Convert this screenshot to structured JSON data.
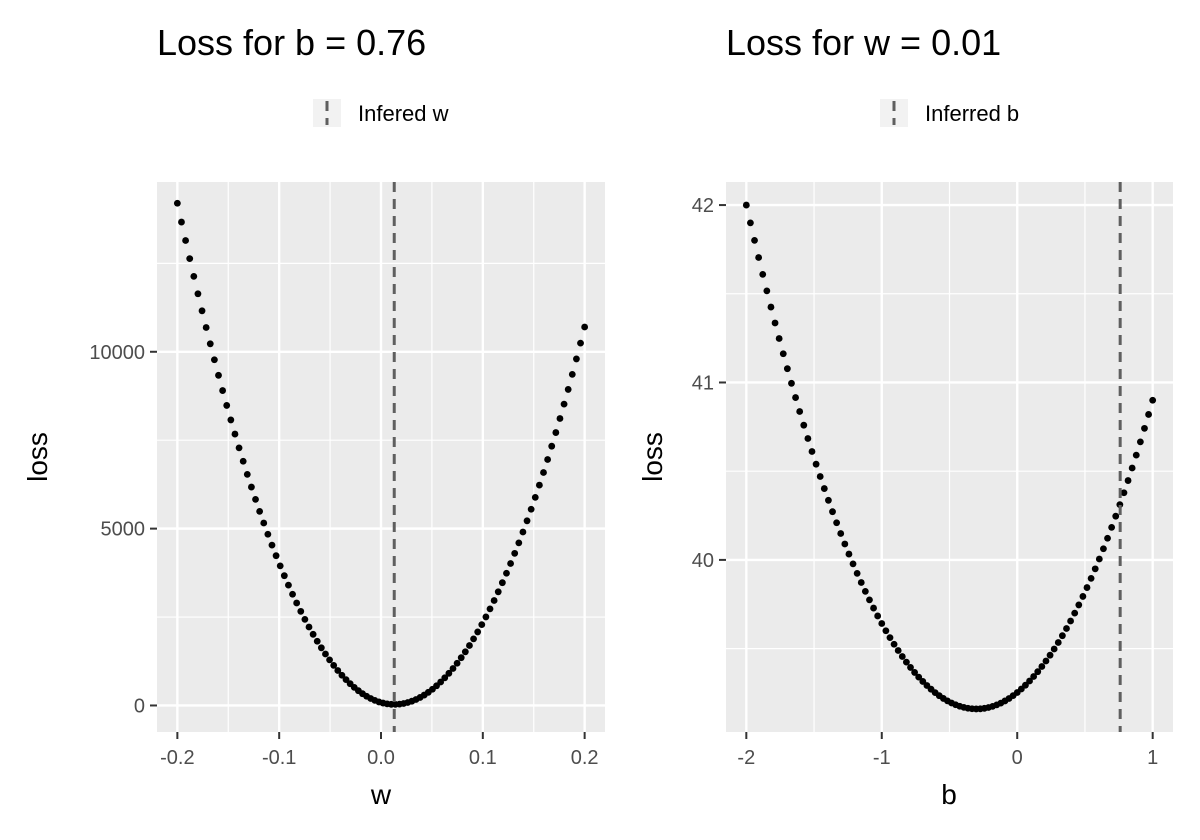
{
  "chart_data": [
    {
      "type": "scatter",
      "title": "Loss for b =  0.76",
      "legend": {
        "label": "Infered w",
        "position": "top"
      },
      "xlabel": "w",
      "ylabel": "loss",
      "xlim": [
        -0.22,
        0.22
      ],
      "ylim": [
        -750,
        14800
      ],
      "x_ticks": [
        -0.2,
        -0.1,
        0.0,
        0.1,
        0.2
      ],
      "x_tick_labels": [
        "-0.2",
        "-0.1",
        "0.0",
        "0.1",
        "0.2"
      ],
      "y_ticks": [
        0,
        5000,
        10000
      ],
      "y_tick_labels": [
        "0",
        "5000",
        "10000"
      ],
      "reference_line": {
        "axis": "x",
        "value": 0.013,
        "style": "dashed",
        "color": "#5f5f5f"
      },
      "curve": {
        "min_x": 0.013,
        "min_y": 30,
        "points": 100,
        "x_range": [
          -0.2,
          0.2
        ],
        "endpoints": [
          [
            -0.2,
            14200
          ],
          [
            0.2,
            10700
          ]
        ]
      },
      "grid": true
    },
    {
      "type": "scatter",
      "title": "Loss for w =  0.01",
      "legend": {
        "label": "Inferred b",
        "position": "top"
      },
      "xlabel": "b",
      "ylabel": "loss",
      "xlim": [
        -2.15,
        1.15
      ],
      "ylim": [
        39.03,
        42.13
      ],
      "x_ticks": [
        -2,
        -1,
        0,
        1
      ],
      "x_tick_labels": [
        "-2",
        "-1",
        "0",
        "1"
      ],
      "y_ticks": [
        40,
        41,
        42
      ],
      "y_tick_labels": [
        "40",
        "41",
        "42"
      ],
      "reference_line": {
        "axis": "x",
        "value": 0.76,
        "style": "dashed",
        "color": "#5f5f5f"
      },
      "curve": {
        "min_x": -0.3,
        "min_y": 39.16,
        "points": 100,
        "x_range": [
          -2,
          1
        ],
        "endpoints": [
          [
            -2,
            42.0
          ],
          [
            1,
            40.9
          ]
        ]
      },
      "grid": true
    }
  ]
}
